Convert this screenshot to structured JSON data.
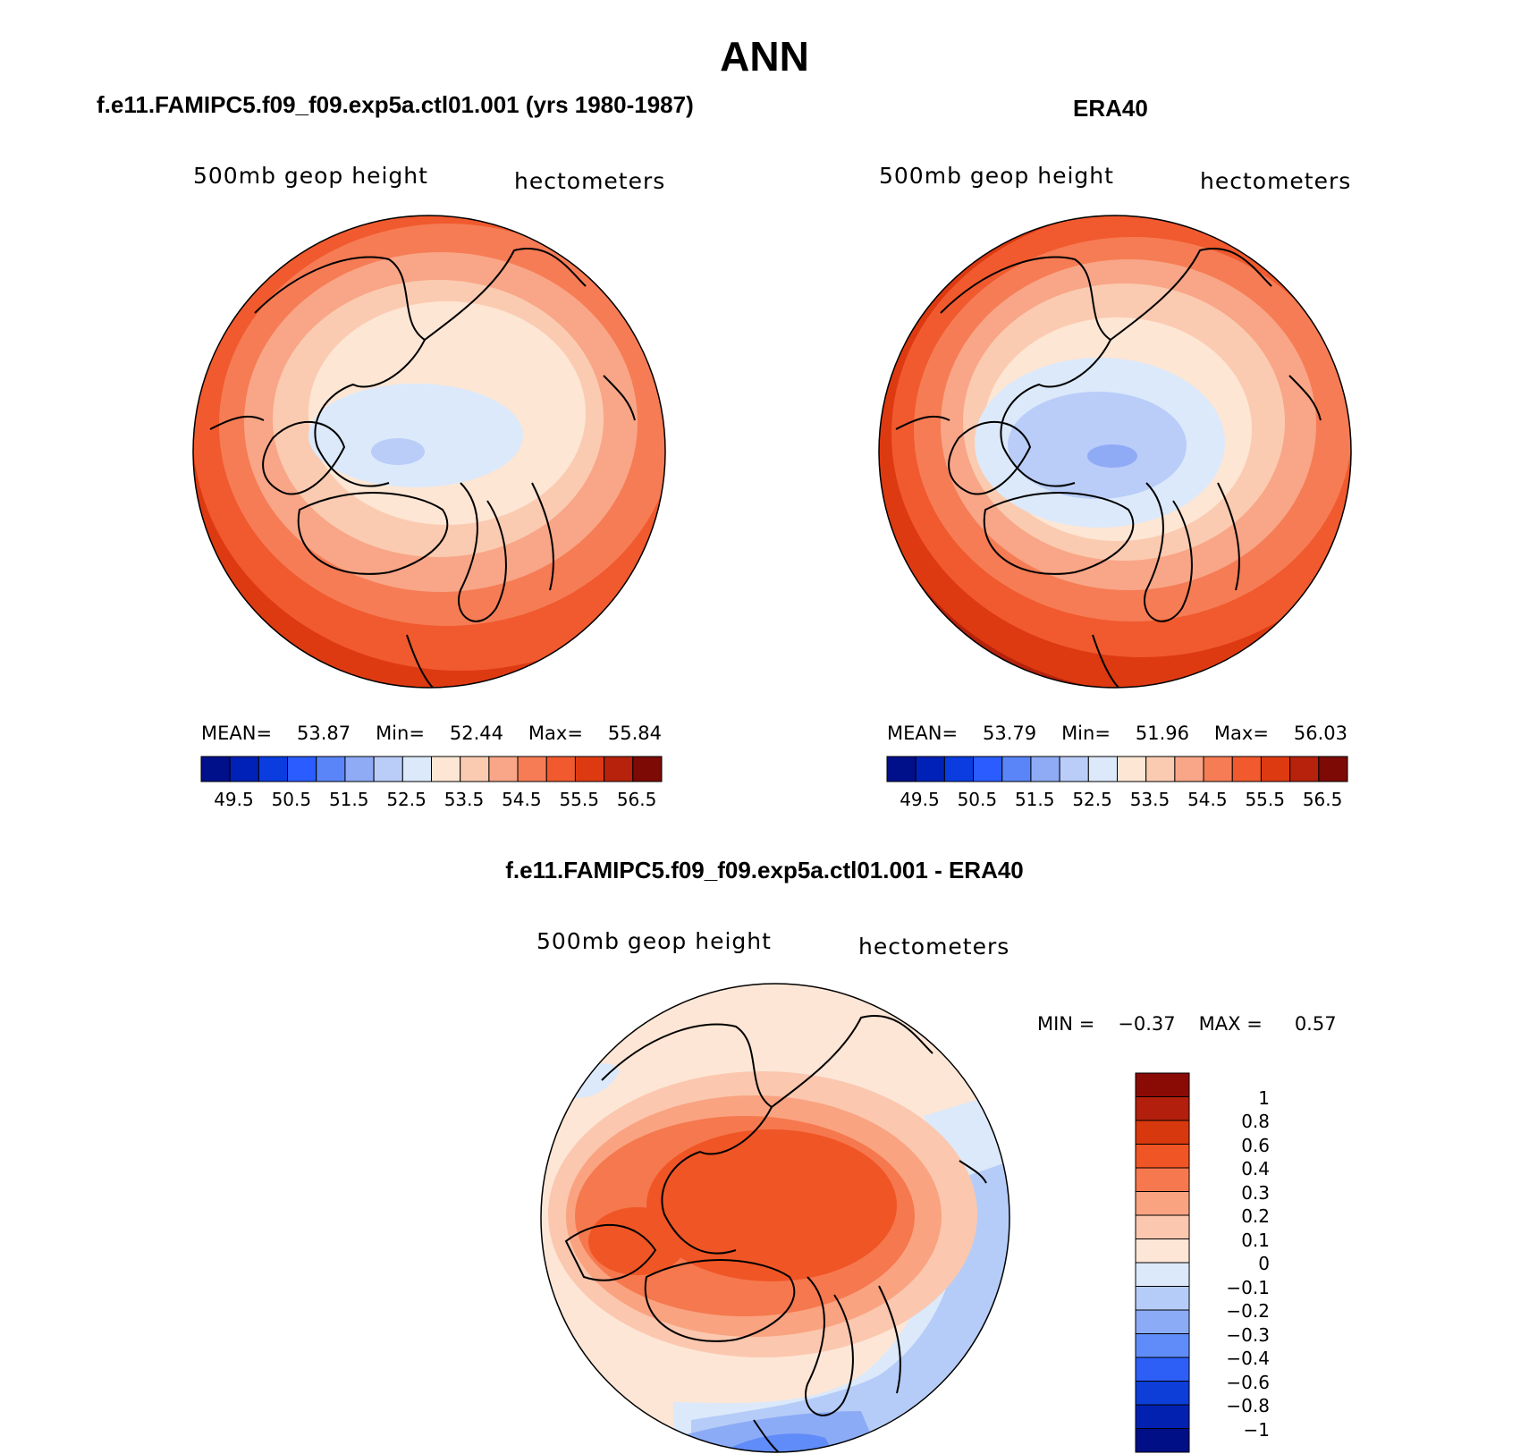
{
  "title": "ANN",
  "panels": [
    {
      "heading": "f.e11.FAMIPC5.f09_f09.exp5a.ctl01.001 (yrs 1980-1987)",
      "field_label": "500mb geop height",
      "units_label": "hectometers",
      "stats": {
        "mean_label": "MEAN=",
        "mean": "53.87",
        "min_label": "Min=",
        "min": "52.44",
        "max_label": "Max=",
        "max": "55.84"
      }
    },
    {
      "heading": "ERA40",
      "field_label": "500mb geop height",
      "units_label": "hectometers",
      "stats": {
        "mean_label": "MEAN=",
        "mean": "53.79",
        "min_label": "Min=",
        "min": "51.96",
        "max_label": "Max=",
        "max": "56.03"
      }
    },
    {
      "heading": "f.e11.FAMIPC5.f09_f09.exp5a.ctl01.001 - ERA40",
      "field_label": "500mb geop height",
      "units_label": "hectometers",
      "stats": {
        "min_label": "MIN =",
        "min": "−0.37",
        "max_label": "MAX =",
        "max": "0.57"
      }
    }
  ],
  "colorbar_main": {
    "colors": [
      "#000f8a",
      "#0021b8",
      "#0a3ce0",
      "#2a5cff",
      "#5a85f8",
      "#8fabf5",
      "#b9cdf8",
      "#dce9fa",
      "#fde6d4",
      "#fbcbb1",
      "#f8a687",
      "#f67c55",
      "#f05a2e",
      "#dd3a12",
      "#b6220c",
      "#7e0a05"
    ],
    "labels": [
      "49.5",
      "50.5",
      "51.5",
      "52.5",
      "53.5",
      "54.5",
      "55.5",
      "56.5"
    ]
  },
  "colorbar_diff": {
    "colors_top_to_bottom": [
      "#8a0a06",
      "#b2200d",
      "#d8380e",
      "#f05525",
      "#f6784e",
      "#f9a381",
      "#fbc7ae",
      "#fde6d6",
      "#dbe9fb",
      "#b6ccf8",
      "#8cabf6",
      "#5f8cf8",
      "#2d5ff6",
      "#0d3ed8",
      "#0221b0",
      "#000f86"
    ],
    "labels_top_to_bottom": [
      "1",
      "0.8",
      "0.6",
      "0.4",
      "0.3",
      "0.2",
      "0.1",
      "0",
      "−0.1",
      "−0.2",
      "−0.3",
      "−0.4",
      "−0.6",
      "−0.8",
      "−1"
    ]
  },
  "map_fills": {
    "panel1": [
      "#de3a12",
      "#f05a2e",
      "#f67c55",
      "#f8a687",
      "#fbcbb1",
      "#fde6d4",
      "#dce9fa",
      "#b9cdf8"
    ],
    "panel2": [
      "#b6220c",
      "#dd3a12",
      "#f05a2e",
      "#f67c55",
      "#f8a687",
      "#fbcbb1",
      "#fde6d4",
      "#dce9fa",
      "#b9cdf8",
      "#8fabf5"
    ],
    "panel3": [
      "#fde6d6",
      "#fbc7ae",
      "#f9a381",
      "#f6784e",
      "#f05525",
      "#dbe9fb",
      "#b6ccf8",
      "#8cabf6",
      "#5f8cf8"
    ],
    "coastline": "#000000"
  }
}
